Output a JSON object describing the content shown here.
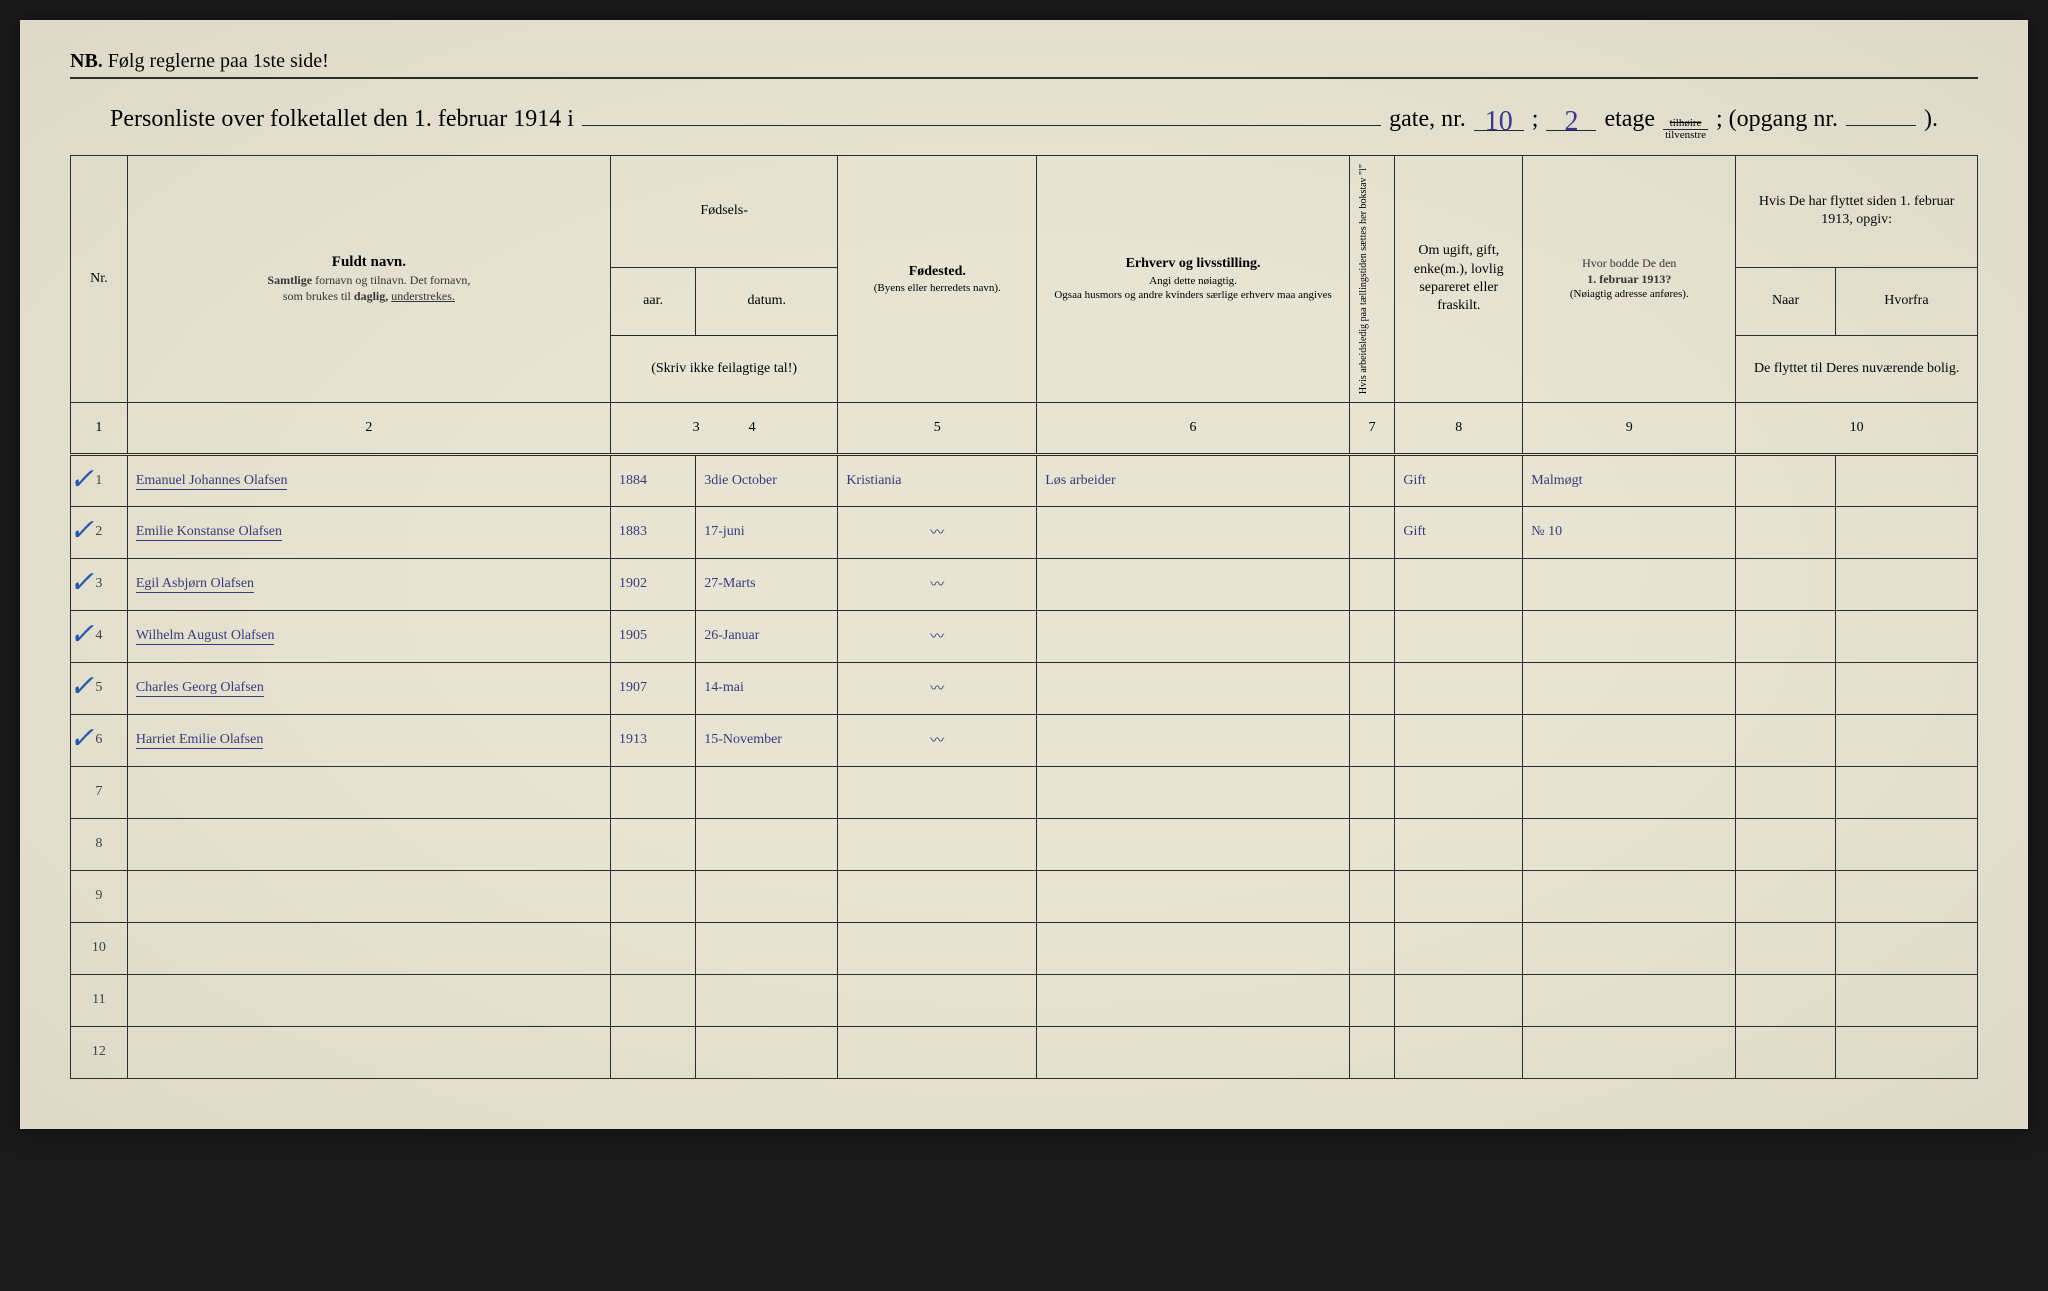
{
  "colors": {
    "paper": "#e8e4d4",
    "ink": "#2a2a2a",
    "handwriting": "#3a3a7a",
    "blue_check": "#2a5aaa"
  },
  "header": {
    "nb_bold": "NB.",
    "nb_text": "Følg reglerne paa 1ste side!",
    "title_prefix": "Personliste over folketallet den 1. februar 1914 i",
    "gate_label": "gate, nr.",
    "gate_nr": "10",
    "semicolon": ";",
    "etage_nr": "2",
    "etage_label": "etage",
    "fraction_top": "tilhøire",
    "fraction_bot": "tilvenstre",
    "opgang_label": "; (opgang nr.",
    "opgang_close": ")."
  },
  "column_numbers": [
    "1",
    "2",
    "3",
    "4",
    "5",
    "6",
    "7",
    "8",
    "9",
    "10"
  ],
  "headers": {
    "nr": "Nr.",
    "c2_main": "Fuldt navn.",
    "c2_sub1": "Samtlige fornavn og tilnavn. Det fornavn,",
    "c2_sub2": "som brukes til daglig, understrekes.",
    "c34_top": "Fødsels-",
    "c3": "aar.",
    "c4": "datum.",
    "c34_sub": "(Skriv ikke feilagtige tal!)",
    "c5_main": "Fødested.",
    "c5_sub": "(Byens eller herredets navn).",
    "c6_main": "Erhverv og livsstilling.",
    "c6_sub1": "Angi dette nøiagtig.",
    "c6_sub2": "Ogsaa husmors og andre kvinders særlige erhverv maa angives",
    "c7": "Hvis arbeidsledig paa tællingstiden sættes her bokstav \"l\"",
    "c8": "Om ugift, gift, enke(m.), lovlig separeret eller fraskilt.",
    "c9_main": "Hvor bodde De den 1. februar 1913?",
    "c9_sub": "(Nøiagtig adresse anføres).",
    "c10_top": "Hvis De har flyttet siden 1. februar 1913, opgiv:",
    "c10a": "Naar",
    "c10b": "Hvorfra",
    "c10_sub": "De flyttet til Deres nuværende bolig."
  },
  "rows": [
    {
      "nr": "1",
      "check": "✓",
      "name": "Emanuel Johannes Olafsen",
      "year": "1884",
      "date": "3die October",
      "birthplace": "Kristiania",
      "occupation": "Løs arbeider",
      "marital": "Gift",
      "prev_addr": "Malmøgt"
    },
    {
      "nr": "2",
      "check": "✓",
      "name": "Emilie Konstanse Olafsen",
      "year": "1883",
      "date": "17-juni",
      "birthplace": "—",
      "occupation": "",
      "marital": "Gift",
      "prev_addr": "№ 10"
    },
    {
      "nr": "3",
      "check": "✓",
      "name": "Egil Asbjørn Olafsen",
      "year": "1902",
      "date": "27-Marts",
      "birthplace": "—",
      "occupation": "",
      "marital": "",
      "prev_addr": ""
    },
    {
      "nr": "4",
      "check": "✓",
      "name": "Wilhelm August Olafsen",
      "year": "1905",
      "date": "26-Januar",
      "birthplace": "—",
      "occupation": "",
      "marital": "",
      "prev_addr": ""
    },
    {
      "nr": "5",
      "check": "✓",
      "name": "Charles Georg Olafsen",
      "year": "1907",
      "date": "14-mai",
      "birthplace": "—",
      "occupation": "",
      "marital": "",
      "prev_addr": ""
    },
    {
      "nr": "6",
      "check": "✓",
      "name": "Harriet Emilie Olafsen",
      "year": "1913",
      "date": "15-November",
      "birthplace": "—",
      "occupation": "",
      "marital": "",
      "prev_addr": ""
    },
    {
      "nr": "7"
    },
    {
      "nr": "8"
    },
    {
      "nr": "9"
    },
    {
      "nr": "10"
    },
    {
      "nr": "11"
    },
    {
      "nr": "12"
    }
  ]
}
